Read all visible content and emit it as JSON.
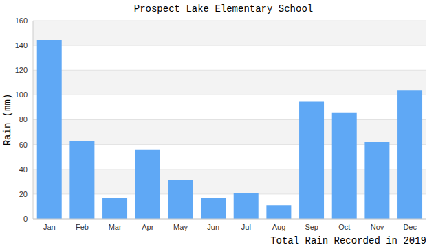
{
  "chart_data": {
    "type": "bar",
    "title": "Prospect Lake Elementary School",
    "x_label": "Total Rain Recorded in 2019",
    "y_label": "Rain (mm)",
    "categories": [
      "Jan",
      "Feb",
      "Mar",
      "Apr",
      "May",
      "Jun",
      "Jul",
      "Aug",
      "Sep",
      "Oct",
      "Nov",
      "Dec"
    ],
    "values": [
      144,
      63,
      17,
      56,
      31,
      17,
      21,
      11,
      95,
      86,
      62,
      104
    ],
    "color": "#5fa8f5",
    "ylim": [
      0,
      160
    ],
    "yticks": [
      0,
      20,
      40,
      60,
      80,
      100,
      120,
      140,
      160
    ],
    "grid": true
  }
}
